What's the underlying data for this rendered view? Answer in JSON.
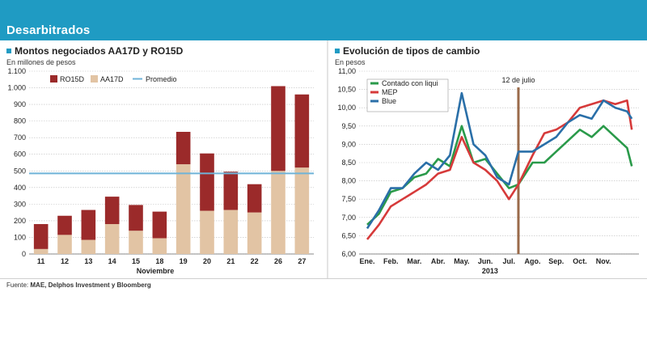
{
  "header": {
    "title": "Desarbitrados"
  },
  "colors": {
    "header_bg": "#1f9bc3",
    "ro15d": "#9b2a2a",
    "aa17d": "#e2c4a4",
    "promedio": "#6fb3d8",
    "contado": "#2a9a4a",
    "mep": "#d63a3a",
    "blue": "#2a6fa8",
    "marker": "#9a6a4a"
  },
  "left": {
    "title": "Montos negociados AA17D y RO15D",
    "subtitle": "En millones de pesos",
    "chart_data": {
      "type": "bar",
      "stacked": true,
      "categories": [
        "11",
        "12",
        "13",
        "14",
        "15",
        "18",
        "19",
        "20",
        "21",
        "22",
        "26",
        "27"
      ],
      "xlabel": "Noviembre",
      "ylabel": "En millones de pesos",
      "ylim": [
        0,
        1100
      ],
      "yticks": [
        "0",
        "100",
        "200",
        "300",
        "400",
        "500",
        "600",
        "700",
        "800",
        "900",
        "1.000",
        "1.100"
      ],
      "series": [
        {
          "name": "AA17D",
          "values": [
            30,
            115,
            85,
            180,
            140,
            95,
            540,
            260,
            265,
            250,
            500,
            520
          ]
        },
        {
          "name": "RO15D",
          "values": [
            150,
            115,
            180,
            165,
            155,
            160,
            195,
            345,
            230,
            170,
            510,
            440
          ]
        }
      ],
      "average": {
        "name": "Promedio",
        "value": 485
      },
      "legend": [
        "RO15D",
        "AA17D",
        "Promedio"
      ]
    }
  },
  "right": {
    "title": "Evolución de tipos de cambio",
    "subtitle": "En pesos",
    "chart_data": {
      "type": "line",
      "xlabels": [
        "Ene.",
        "Feb.",
        "Mar.",
        "Abr.",
        "May.",
        "Jun.",
        "Jul.",
        "Ago.",
        "Sep.",
        "Oct.",
        "Nov."
      ],
      "xlabel": "2013",
      "ylabel": "En pesos",
      "ylim": [
        6.0,
        11.0
      ],
      "yticks": [
        "6,00",
        "6,50",
        "7,00",
        "7,50",
        "8,00",
        "8,50",
        "9,00",
        "9,50",
        "10,00",
        "10,50",
        "11,00"
      ],
      "annotation": {
        "label": "12 de julio",
        "x": 6.4
      },
      "series": [
        {
          "name": "Contado con liqui",
          "x": [
            0,
            0.5,
            1,
            1.5,
            2,
            2.5,
            3,
            3.5,
            4,
            4.5,
            5,
            5.5,
            6,
            6.4,
            7,
            7.5,
            8,
            8.5,
            9,
            9.5,
            10,
            10.5,
            11,
            11.2
          ],
          "values": [
            6.8,
            7.1,
            7.7,
            7.8,
            8.1,
            8.2,
            8.6,
            8.4,
            9.5,
            8.5,
            8.6,
            8.2,
            7.8,
            7.9,
            8.5,
            8.5,
            8.8,
            9.1,
            9.4,
            9.2,
            9.5,
            9.2,
            8.9,
            8.4
          ]
        },
        {
          "name": "MEP",
          "x": [
            0,
            0.5,
            1,
            1.5,
            2,
            2.5,
            3,
            3.5,
            4,
            4.5,
            5,
            5.5,
            6,
            6.4,
            7,
            7.5,
            8,
            8.5,
            9,
            9.5,
            10,
            10.5,
            11,
            11.2
          ],
          "values": [
            6.4,
            6.8,
            7.3,
            7.5,
            7.7,
            7.9,
            8.2,
            8.3,
            9.2,
            8.5,
            8.3,
            8.0,
            7.5,
            7.9,
            8.7,
            9.3,
            9.4,
            9.6,
            10.0,
            10.1,
            10.2,
            10.1,
            10.2,
            9.4
          ]
        },
        {
          "name": "Blue",
          "x": [
            0,
            0.5,
            1,
            1.5,
            2,
            2.5,
            3,
            3.5,
            4,
            4.5,
            5,
            5.5,
            6,
            6.4,
            7,
            7.5,
            8,
            8.5,
            9,
            9.5,
            10,
            10.5,
            11,
            11.2
          ],
          "values": [
            6.7,
            7.2,
            7.8,
            7.8,
            8.2,
            8.5,
            8.3,
            8.7,
            10.4,
            9.0,
            8.7,
            8.1,
            7.9,
            8.8,
            8.8,
            9.0,
            9.2,
            9.6,
            9.8,
            9.7,
            10.2,
            10.0,
            9.9,
            9.7
          ]
        }
      ],
      "legend": [
        "Contado con liqui",
        "MEP",
        "Blue"
      ]
    }
  },
  "footer": {
    "source_label": "Fuente:",
    "source_text": "MAE, Delphos Investment y Bloomberg"
  }
}
